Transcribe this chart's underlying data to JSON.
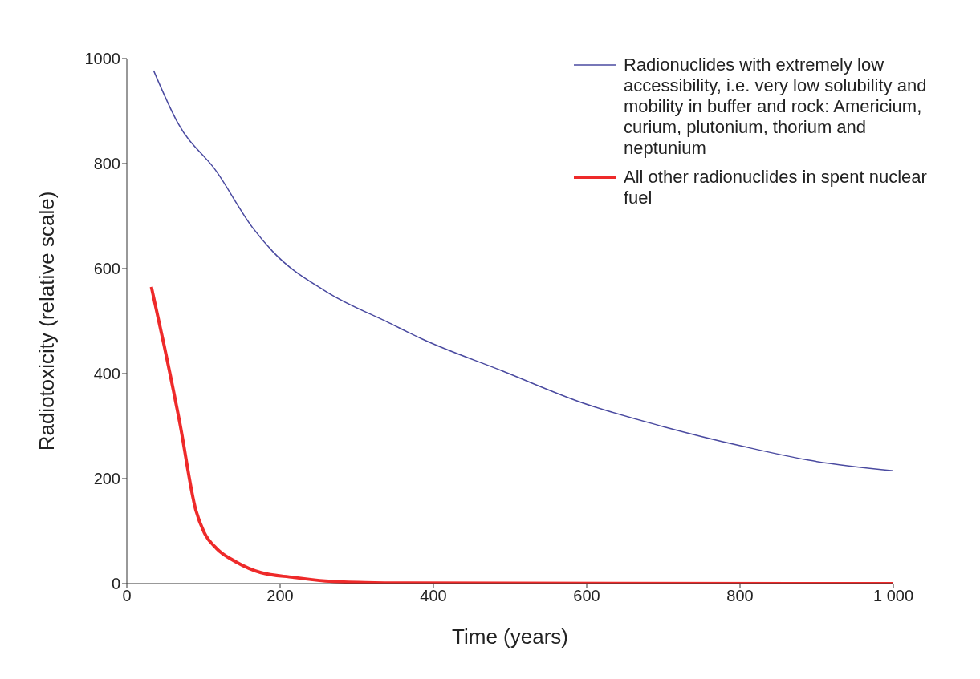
{
  "chart_data": {
    "type": "line",
    "xlabel": "Time (years)",
    "ylabel": "Radiotoxicity (relative scale)",
    "xlim": [
      0,
      1000
    ],
    "xticks": [
      0,
      200,
      400,
      600,
      800,
      {
        "value": 1000,
        "label": "1 000"
      }
    ],
    "ylim": [
      0,
      1000
    ],
    "yticks": [
      0,
      200,
      400,
      600,
      800,
      1000
    ],
    "grid": false,
    "legend": "top right",
    "marker": "none",
    "line_style": "solid",
    "series": [
      {
        "name": "Radionuclides with extremely low accessibility, i.e. very low solubility and mobility in buffer and rock: Americium, curium, plutonium, thorium and neptunium",
        "color": "#4a4aa0",
        "x": [
          35,
          67,
          117,
          164,
          190,
          259,
          343,
          385,
          490,
          595,
          700,
          805,
          890,
          1000
        ],
        "values": [
          977,
          876,
          785,
          678,
          633,
          557,
          496,
          466,
          405,
          344,
          299,
          261,
          235,
          215
        ]
      },
      {
        "name": "All other radionuclides in spent nuclear fuel",
        "color": "#ee2a2a",
        "x": [
          32,
          48,
          69,
          90,
          101,
          117,
          143,
          175,
          217,
          259,
          311,
          364,
          1000
        ],
        "values": [
          565,
          458,
          307,
          140,
          97,
          67,
          41,
          21,
          12,
          5,
          2,
          1,
          0
        ]
      }
    ]
  }
}
